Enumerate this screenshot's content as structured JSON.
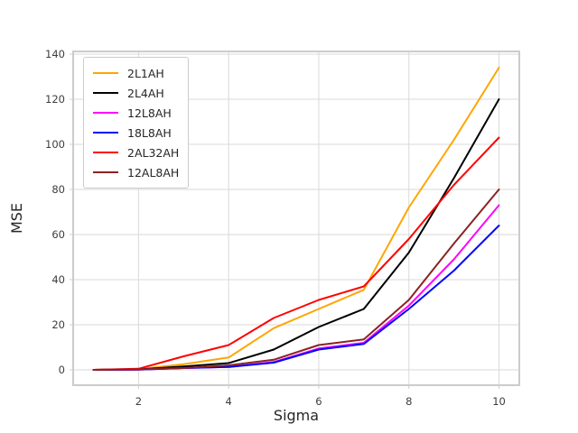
{
  "figure": {
    "background": "#ffffff",
    "grid_color": "#d9d9d9",
    "spine_color": "#cccccc",
    "tick_label_color": "#3d3d3d",
    "axis_label_color": "#262626"
  },
  "chart_data": {
    "type": "line",
    "title": "",
    "xlabel": "Sigma",
    "ylabel": "MSE",
    "x": [
      1,
      2,
      3,
      4,
      5,
      6,
      7,
      8,
      9,
      10
    ],
    "xticks": [
      2,
      4,
      6,
      8,
      10
    ],
    "yticks": [
      0,
      20,
      40,
      60,
      80,
      100,
      120,
      140
    ],
    "xlim": [
      0.55,
      10.45
    ],
    "ylim": [
      -6.8,
      141.2
    ],
    "grid": true,
    "legend_position": "upper-left",
    "series": [
      {
        "name": "2L1AH",
        "color": "#ffa500",
        "values": [
          0,
          0.3,
          2.5,
          5.5,
          18.5,
          27,
          35.5,
          72,
          102,
          134
        ]
      },
      {
        "name": "2L4AH",
        "color": "#000000",
        "values": [
          0,
          0.2,
          1.5,
          3,
          9,
          19,
          27,
          52,
          85,
          120
        ]
      },
      {
        "name": "12L8AH",
        "color": "#ff00ff",
        "values": [
          0,
          0.1,
          0.8,
          1.3,
          3.5,
          9.5,
          12,
          28.5,
          49,
          73
        ]
      },
      {
        "name": "18L8AH",
        "color": "#0000ff",
        "values": [
          0,
          0.1,
          0.8,
          1.3,
          3.2,
          9,
          11.5,
          27,
          44,
          64
        ]
      },
      {
        "name": "2AL32AH",
        "color": "#ff0000",
        "values": [
          0,
          0.5,
          6,
          11,
          23,
          31,
          37,
          58,
          82,
          103
        ]
      },
      {
        "name": "12AL8AH",
        "color": "#8b2323",
        "values": [
          0,
          0.2,
          0.8,
          2,
          4.5,
          11,
          13.5,
          31,
          56,
          80
        ]
      }
    ]
  }
}
